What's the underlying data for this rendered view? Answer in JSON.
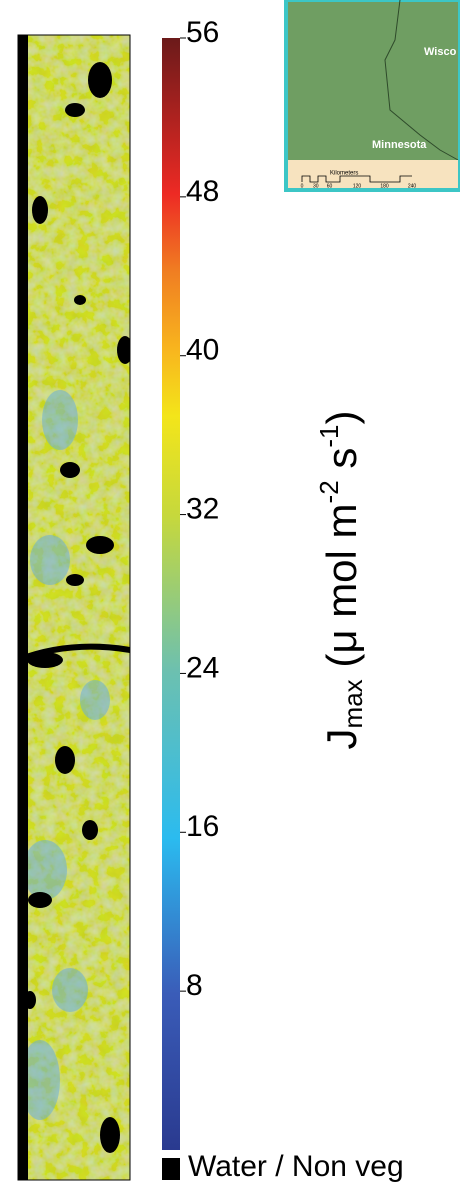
{
  "colorbar": {
    "lim": [
      0,
      56
    ],
    "ticks": [
      56,
      48,
      40,
      32,
      24,
      16,
      8
    ],
    "nodata_label": "Water / Non veg",
    "label": [
      "J",
      "max",
      " (μ mol m",
      "-2",
      " s",
      "-1",
      ")"
    ]
  },
  "inset_map": {
    "labels": [
      "Wisco",
      "Minnesota"
    ],
    "scale_title": "Kilometers",
    "scale_ticks": [
      0,
      30,
      60,
      120,
      180,
      240
    ]
  }
}
